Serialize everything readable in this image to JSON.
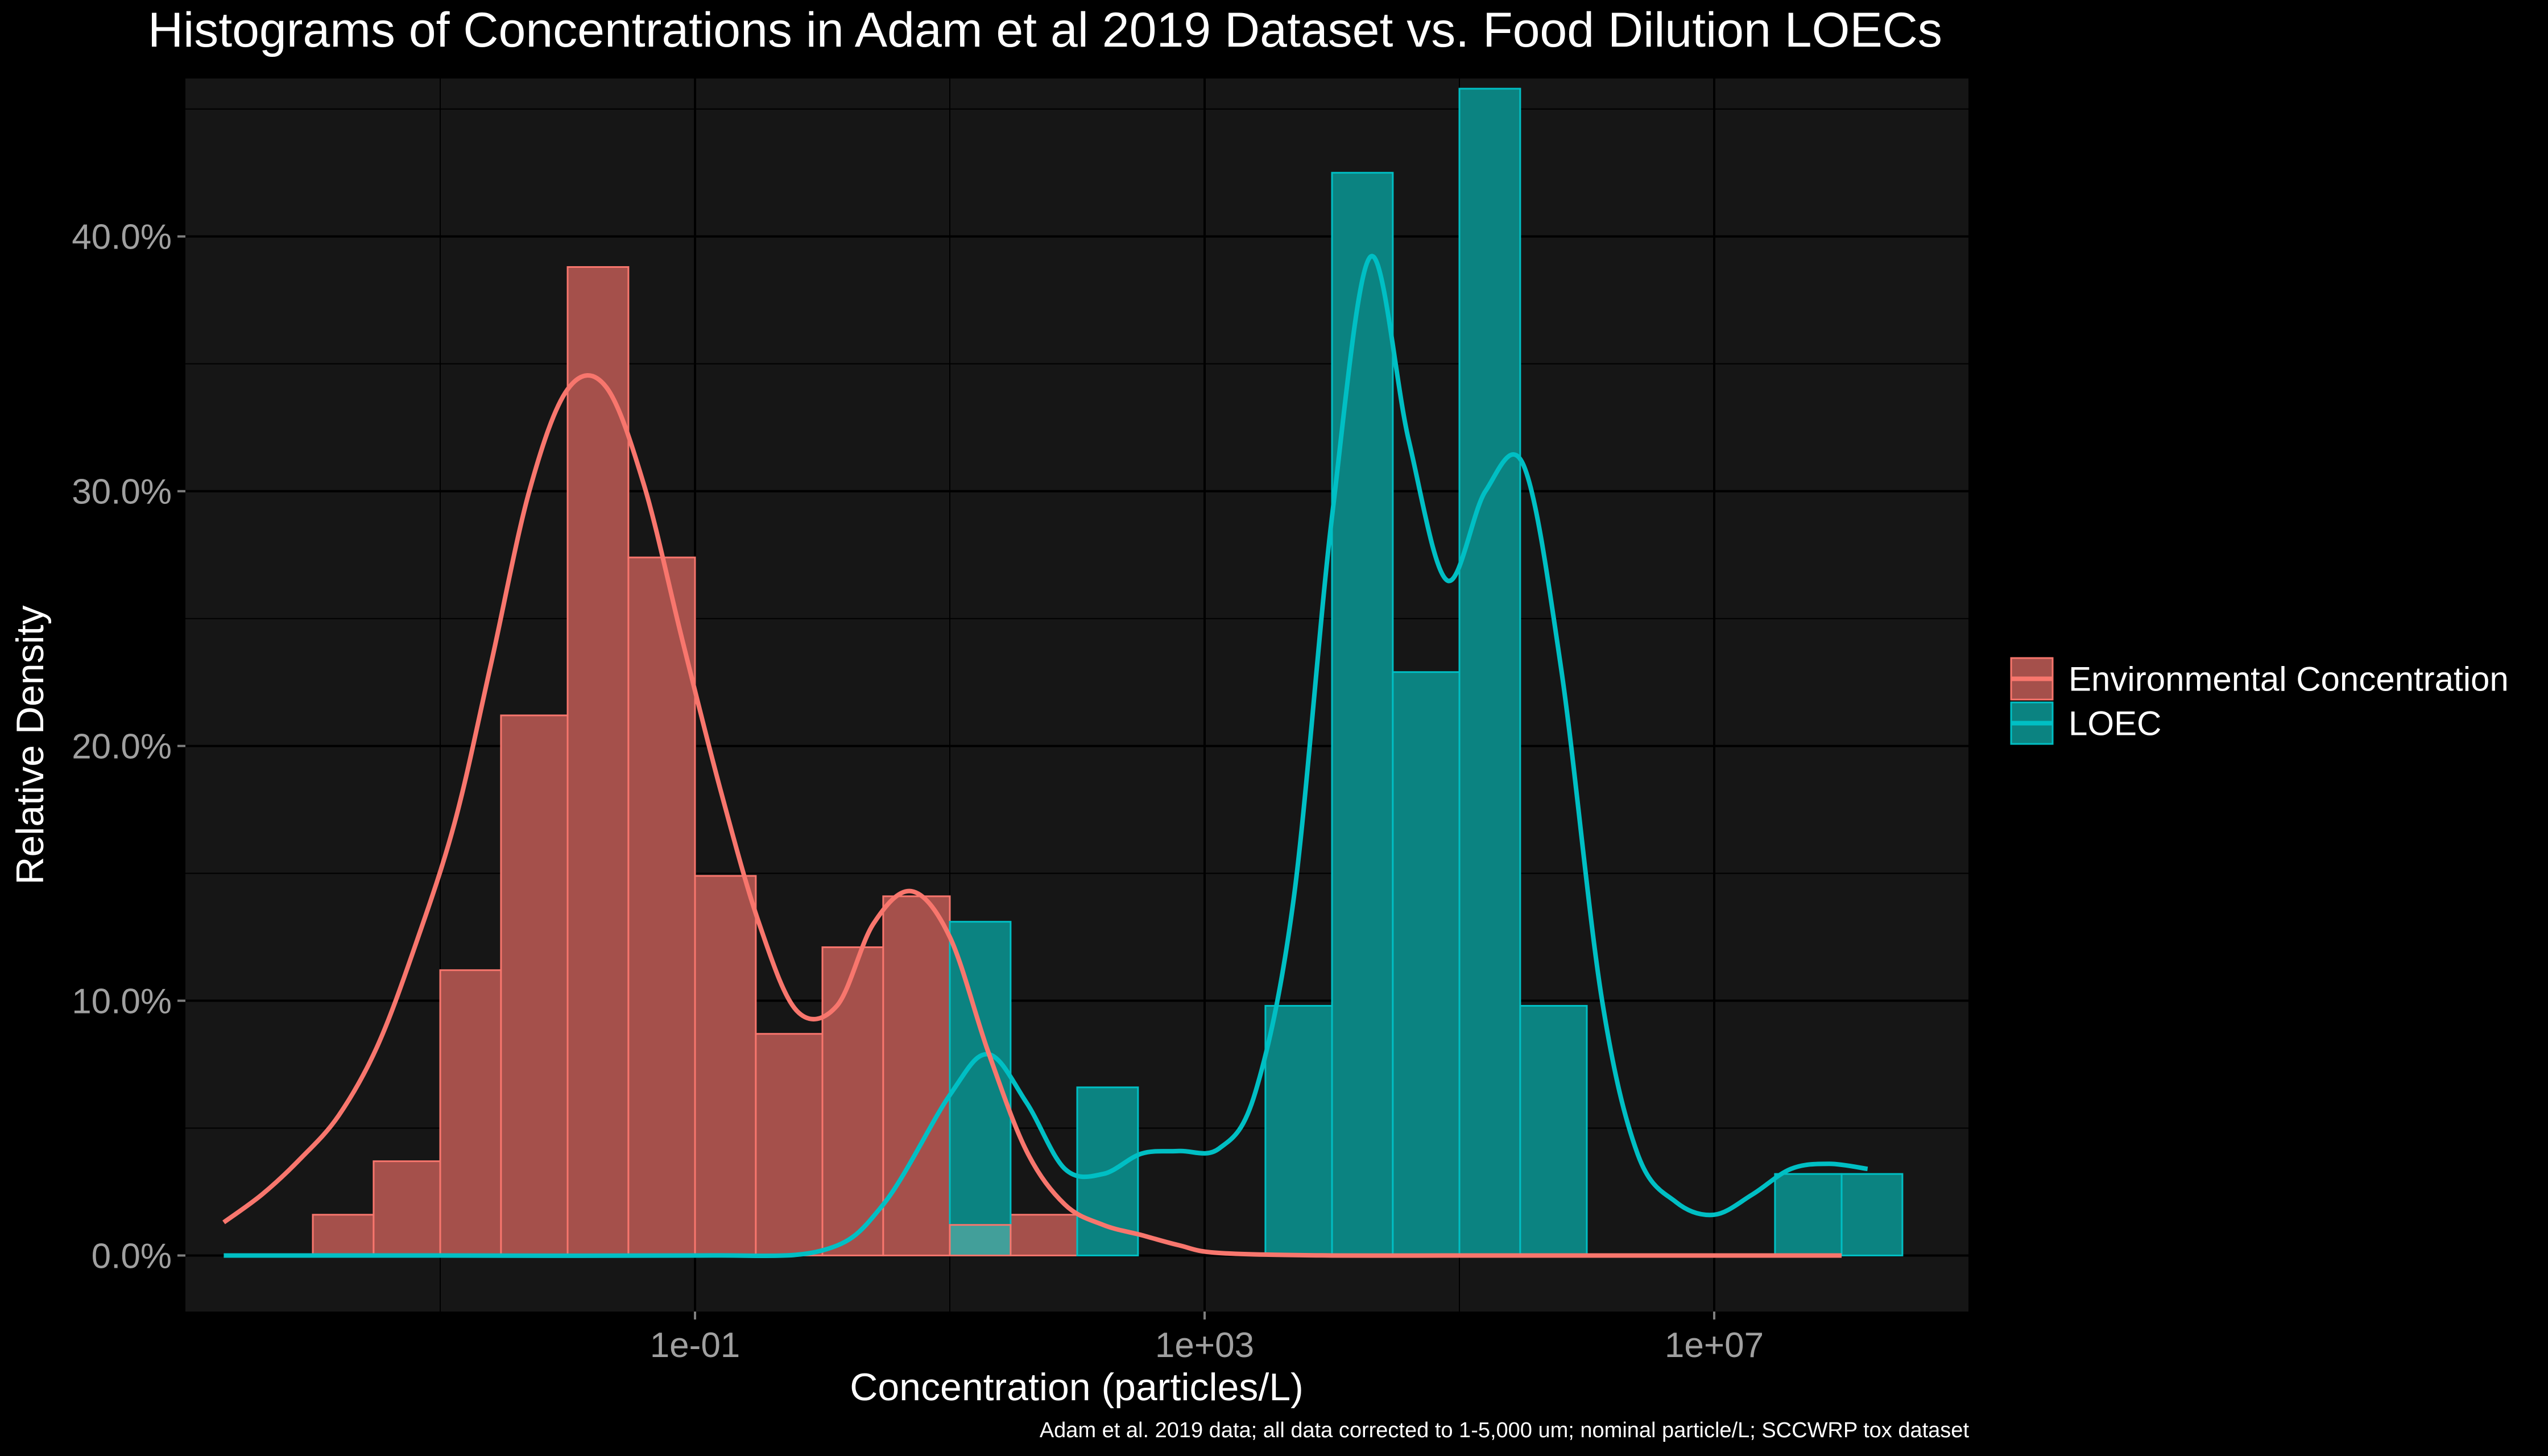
{
  "chart_data": {
    "type": "bar",
    "title": "Histograms of Concentrations in Adam et al 2019 Dataset vs. Food Dilution LOECs",
    "xlabel": "Concentration (particles/L)",
    "ylabel": "Relative Density",
    "caption": "Adam et al. 2019 data; all data corrected to 1-5,000 um; nominal particle/L; SCCWRP tox dataset",
    "x_scale": "log10",
    "xlim": [
      "1e-05",
      "1e+09"
    ],
    "ylim": [
      -0.022,
      0.462
    ],
    "x_ticks": [
      {
        "value": "1e-01",
        "label": "1e-01"
      },
      {
        "value": "1e+03",
        "label": "1e+03"
      },
      {
        "value": "1e+07",
        "label": "1e+07"
      }
    ],
    "y_ticks": [
      {
        "value": 0.0,
        "label": "0.0%"
      },
      {
        "value": 0.1,
        "label": "10.0%"
      },
      {
        "value": 0.2,
        "label": "20.0%"
      },
      {
        "value": 0.3,
        "label": "30.0%"
      },
      {
        "value": 0.4,
        "label": "40.0%"
      }
    ],
    "grid": true,
    "legend_position": "right",
    "colors": {
      "background": "#000000",
      "panel": "#161616",
      "env_fill": "#a5504b",
      "env_line": "#f8766d",
      "loec_fill": "#0b8381",
      "loec_line": "#00bfc4",
      "overlap_fill": "#429f9a"
    },
    "series": [
      {
        "name": "Environmental Concentration",
        "legend_icon": "fill-swatch-with-line",
        "bins": [
          {
            "from": "1e-04",
            "to": "3e-04",
            "density": 0.016
          },
          {
            "from": "3e-04",
            "to": "1e-03",
            "density": 0.037
          },
          {
            "from": "1e-03",
            "to": "3e-03",
            "density": 0.112
          },
          {
            "from": "3e-03",
            "to": "1e-02",
            "density": 0.212
          },
          {
            "from": "1e-02",
            "to": "3e-02",
            "density": 0.388
          },
          {
            "from": "3e-02",
            "to": "1e-01",
            "density": 0.274
          },
          {
            "from": "1e-01",
            "to": "3e-01",
            "density": 0.149
          },
          {
            "from": "3e-01",
            "to": "1e+00",
            "density": 0.087
          },
          {
            "from": "1e+00",
            "to": "3e+00",
            "density": 0.121
          },
          {
            "from": "3e+00",
            "to": "1e+01",
            "density": 0.141
          },
          {
            "from": "1e+01",
            "to": "3e+01",
            "density": 0.012
          },
          {
            "from": "3e+01",
            "to": "1e+02",
            "density": 0.016
          }
        ],
        "density_curve": {
          "x": [
            "2e-05",
            "4e-05",
            "8e-05",
            "1.6e-04",
            "3.2e-04",
            "6.3e-04",
            "1.3e-03",
            "2.5e-03",
            "5e-03",
            "1e-02",
            "2e-02",
            "4e-02",
            "8e-02",
            "1.6e-01",
            "3.2e-01",
            "6.3e-01",
            "1.3e+00",
            "2.5e+00",
            "5e+00",
            "1e+01",
            "2e+01",
            "4e+01",
            "8e+01",
            "1.6e+02",
            "3.2e+02",
            "6.3e+02",
            "1.3e+03",
            "1e+04",
            "1e+05",
            "1e+06",
            "1e+07",
            "1e+08"
          ],
          "y": [
            0.013,
            0.024,
            0.038,
            0.055,
            0.082,
            0.121,
            0.17,
            0.232,
            0.3,
            0.34,
            0.341,
            0.302,
            0.241,
            0.182,
            0.13,
            0.096,
            0.098,
            0.13,
            0.143,
            0.125,
            0.08,
            0.041,
            0.02,
            0.012,
            0.008,
            0.004,
            0.001,
            0.0,
            0.0,
            0.0,
            0.0,
            0.0
          ]
        }
      },
      {
        "name": "LOEC",
        "legend_icon": "fill-swatch-with-line",
        "bins": [
          {
            "from": "1e+01",
            "to": "3e+01",
            "density": 0.131
          },
          {
            "from": "1e+02",
            "to": "3e+02",
            "density": 0.066
          },
          {
            "from": "3e+03",
            "to": "1e+04",
            "density": 0.098
          },
          {
            "from": "1e+04",
            "to": "3e+04",
            "density": 0.425
          },
          {
            "from": "3e+04",
            "to": "1e+05",
            "density": 0.229
          },
          {
            "from": "1e+05",
            "to": "3e+05",
            "density": 0.458
          },
          {
            "from": "3e+05",
            "to": "1e+06",
            "density": 0.098
          },
          {
            "from": "3e+07",
            "to": "1e+08",
            "density": 0.032
          },
          {
            "from": "1e+08",
            "to": "3e+08",
            "density": 0.032
          }
        ],
        "density_curve": {
          "x": [
            "2e-05",
            "1e-03",
            "1e-01",
            "1e+00",
            "3e+00",
            "1e+01",
            "2e+01",
            "4e+01",
            "8e+01",
            "1.6e+02",
            "3.2e+02",
            "6.3e+02",
            "1.3e+03",
            "2.5e+03",
            "5e+03",
            "1e+04",
            "2e+04",
            "4e+04",
            "8e+04",
            "1.6e+05",
            "3.2e+05",
            "6.3e+05",
            "1.3e+06",
            "2.5e+06",
            "5e+06",
            "1e+07",
            "2e+07",
            "4e+07",
            "8e+07",
            "1.6e+08"
          ],
          "y": [
            0.0,
            0.0,
            0.0,
            0.002,
            0.02,
            0.063,
            0.079,
            0.06,
            0.034,
            0.032,
            0.04,
            0.041,
            0.042,
            0.064,
            0.14,
            0.29,
            0.392,
            0.32,
            0.265,
            0.3,
            0.31,
            0.23,
            0.102,
            0.04,
            0.021,
            0.016,
            0.024,
            0.034,
            0.036,
            0.034
          ]
        }
      }
    ]
  }
}
